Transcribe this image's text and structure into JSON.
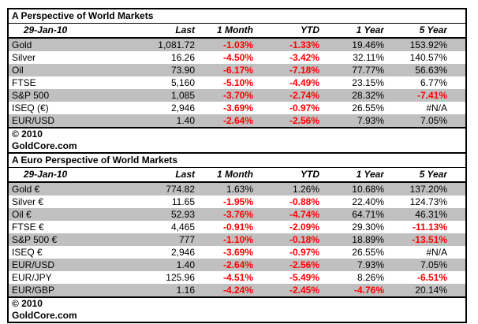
{
  "colors": {
    "negative": "#ff0000",
    "row_shade": "#c0c0c0",
    "border": "#000000"
  },
  "tables": [
    {
      "title": "A Perspective of World Markets",
      "date": "29-Jan-10",
      "columns": [
        "Last",
        "1 Month",
        "YTD",
        "1 Year",
        "5 Year"
      ],
      "rows": [
        {
          "label": "Gold",
          "values": [
            "1,081.72",
            "-1.03%",
            "-1.33%",
            "19.46%",
            "153.92%"
          ],
          "red": [
            false,
            true,
            true,
            false,
            false
          ]
        },
        {
          "label": "Silver",
          "values": [
            "16.26",
            "-4.50%",
            "-3.42%",
            "32.11%",
            "140.57%"
          ],
          "red": [
            false,
            true,
            true,
            false,
            false
          ]
        },
        {
          "label": "Oil",
          "values": [
            "73.90",
            "-6.17%",
            "-7.18%",
            "77.77%",
            "56.63%"
          ],
          "red": [
            false,
            true,
            true,
            false,
            false
          ]
        },
        {
          "label": "FTSE",
          "values": [
            "5,160",
            "-5.10%",
            "-4.49%",
            "23.15%",
            "6.77%"
          ],
          "red": [
            false,
            true,
            true,
            false,
            false
          ]
        },
        {
          "label": "S&P 500",
          "values": [
            "1,085",
            "-3.70%",
            "-2.74%",
            "28.32%",
            "-7.41%"
          ],
          "red": [
            false,
            true,
            true,
            false,
            true
          ]
        },
        {
          "label": "ISEQ (€)",
          "values": [
            "2,946",
            "-3.69%",
            "-0.97%",
            "26.55%",
            "#N/A"
          ],
          "red": [
            false,
            true,
            true,
            false,
            false
          ]
        },
        {
          "label": "EUR/USD",
          "values": [
            "1.40",
            "-2.64%",
            "-2.56%",
            "7.93%",
            "7.05%"
          ],
          "red": [
            false,
            true,
            true,
            false,
            false
          ]
        }
      ],
      "footer_lines": [
        "© 2010",
        "GoldCore.com"
      ]
    },
    {
      "title": "A Euro Perspective of World Markets",
      "date": "29-Jan-10",
      "columns": [
        "Last",
        "1 Month",
        "YTD",
        "1 Year",
        "5 Year"
      ],
      "rows": [
        {
          "label": "Gold €",
          "values": [
            "774.82",
            "1.63%",
            "1.26%",
            "10.68%",
            "137.20%"
          ],
          "red": [
            false,
            false,
            false,
            false,
            false
          ]
        },
        {
          "label": "Silver €",
          "values": [
            "11.65",
            "-1.95%",
            "-0.88%",
            "22.40%",
            "124.73%"
          ],
          "red": [
            false,
            true,
            true,
            false,
            false
          ]
        },
        {
          "label": "Oil €",
          "values": [
            "52.93",
            "-3.76%",
            "-4.74%",
            "64.71%",
            "46.31%"
          ],
          "red": [
            false,
            true,
            true,
            false,
            false
          ]
        },
        {
          "label": "FTSE €",
          "values": [
            "4,465",
            "-0.91%",
            "-2.09%",
            "29.30%",
            "-11.13%"
          ],
          "red": [
            false,
            true,
            true,
            false,
            true
          ]
        },
        {
          "label": "S&P 500 €",
          "values": [
            "777",
            "-1.10%",
            "-0.18%",
            "18.89%",
            "-13.51%"
          ],
          "red": [
            false,
            true,
            true,
            false,
            true
          ]
        },
        {
          "label": "ISEQ €",
          "values": [
            "2,946",
            "-3.69%",
            "-0.97%",
            "26.55%",
            "#N/A"
          ],
          "red": [
            false,
            true,
            true,
            false,
            false
          ]
        },
        {
          "label": "EUR/USD",
          "values": [
            "1.40",
            "-2.64%",
            "-2.56%",
            "7.93%",
            "7.05%"
          ],
          "red": [
            false,
            true,
            true,
            false,
            false
          ]
        },
        {
          "label": "EUR/JPY",
          "values": [
            "125.96",
            "-4.51%",
            "-5.49%",
            "8.26%",
            "-6.51%"
          ],
          "red": [
            false,
            true,
            true,
            false,
            true
          ]
        },
        {
          "label": "EUR/GBP",
          "values": [
            "1.16",
            "-4.24%",
            "-2.45%",
            "-4.76%",
            "20.14%"
          ],
          "red": [
            false,
            true,
            true,
            true,
            false
          ]
        }
      ],
      "footer_lines": [
        "© 2010",
        "GoldCore.com"
      ]
    }
  ]
}
